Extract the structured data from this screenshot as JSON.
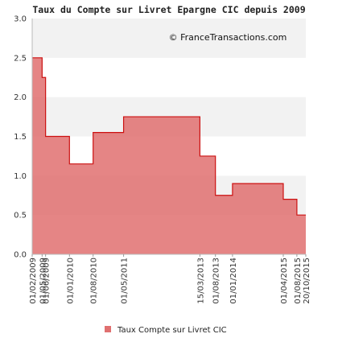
{
  "chart_data": {
    "type": "area",
    "title": "Taux du Compte sur Livret Epargne CIC depuis 2009",
    "watermark": "© FranceTransactions.com",
    "ylim": [
      0,
      3
    ],
    "y_ticks": [
      "0.0",
      "0.5",
      "1.0",
      "1.5",
      "2.0",
      "2.5",
      "3.0"
    ],
    "grid": "horizontal bands",
    "legend_position": "bottom-center",
    "series": [
      {
        "name": "Taux Compte sur Livret CIC",
        "color": "#e07070",
        "line_color": "#cc1111",
        "x": [
          "01/02/2009",
          "01/05/2009",
          "01/06/2009",
          "01/01/2010",
          "01/08/2010",
          "01/05/2011",
          "15/03/2013",
          "01/08/2013",
          "01/01/2014",
          "01/04/2015",
          "01/08/2015",
          "20/10/2015"
        ],
        "values": [
          2.5,
          2.25,
          1.5,
          1.15,
          1.55,
          1.75,
          1.25,
          0.75,
          0.9,
          0.7,
          0.5,
          0.5
        ]
      }
    ],
    "x_tick_labels": [
      "01/02/2009",
      "01/05/2009",
      "01/06/2009",
      "01/01/2010",
      "01/08/2010",
      "01/05/2011",
      "15/03/2013",
      "01/08/2013",
      "01/01/2014",
      "01/04/2015",
      "01/08/2015",
      "20/10/2015"
    ]
  }
}
